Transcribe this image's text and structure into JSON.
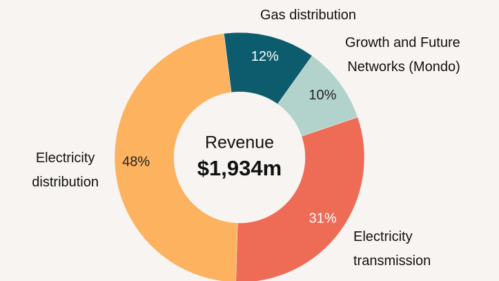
{
  "chart_data": {
    "type": "donut",
    "categories": [
      "Gas distribution",
      "Growth and Future\nNetworks (Mondo)",
      "Electricity\ntransmission",
      "Electricity\ndistribution"
    ],
    "values": [
      12,
      10,
      31,
      48
    ],
    "value_labels": [
      "12%",
      "10%",
      "31%",
      "48%"
    ],
    "colors": [
      "#0d5c6e",
      "#b2d3cc",
      "#ee6b56",
      "#fcb25f"
    ],
    "center_title": "Revenue",
    "center_value": "$1,934m"
  }
}
